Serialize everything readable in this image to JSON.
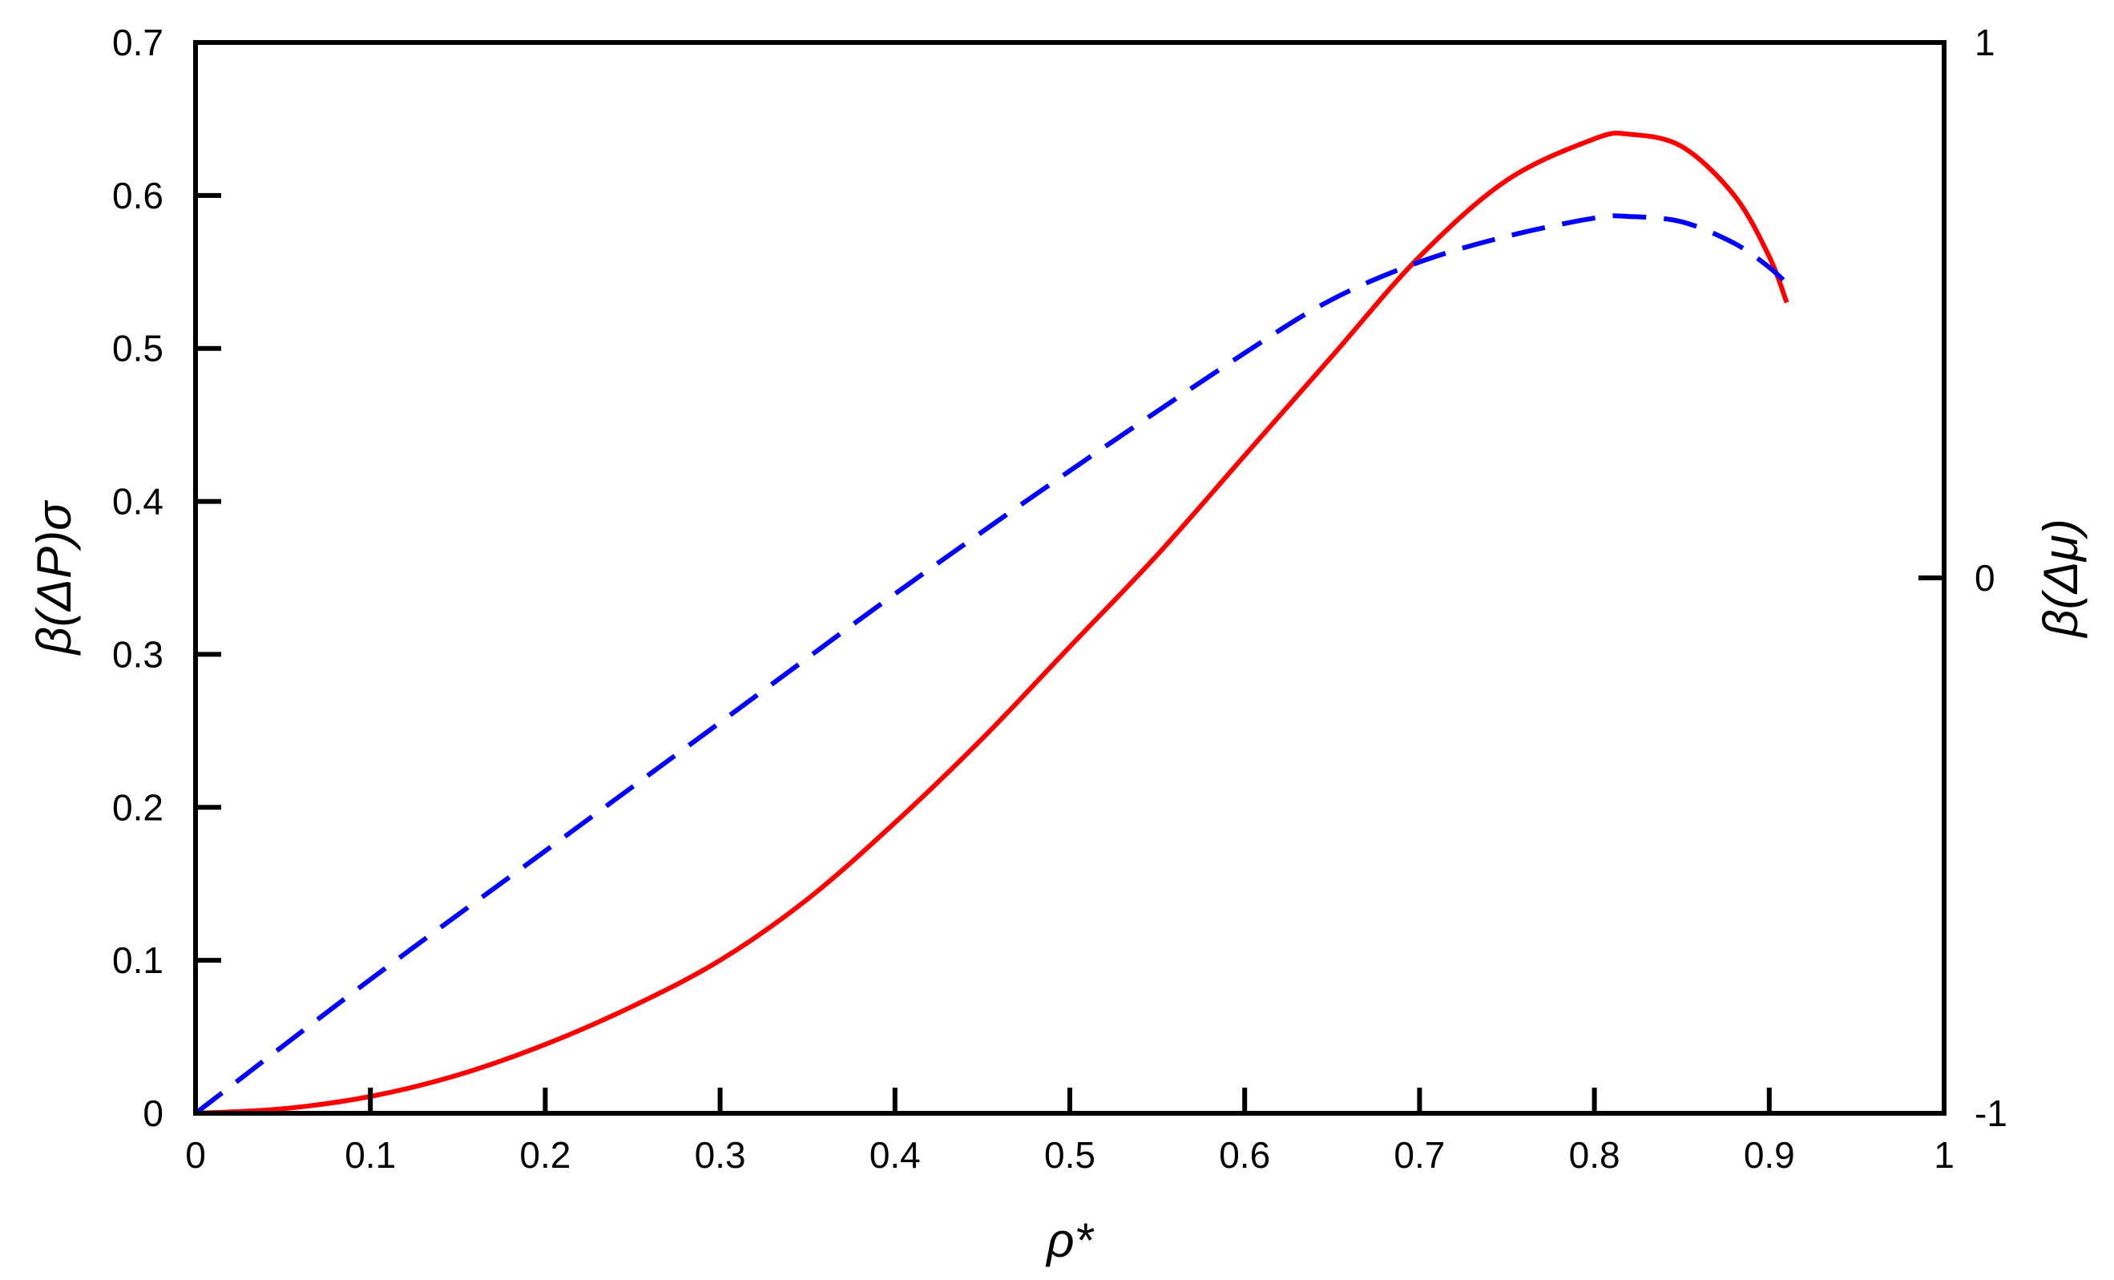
{
  "chart_data": {
    "type": "line",
    "xlabel": "ρ*",
    "ylabel": "β(ΔP)σ",
    "y2label": "β(Δμ)",
    "xlim": [
      0,
      1
    ],
    "ylim": [
      0,
      0.7
    ],
    "y2lim": [
      -1,
      1
    ],
    "x_ticks": [
      "0",
      "0.1",
      "0.2",
      "0.3",
      "0.4",
      "0.5",
      "0.6",
      "0.7",
      "0.8",
      "0.9",
      "1"
    ],
    "y_ticks": [
      "0",
      "0.1",
      "0.2",
      "0.3",
      "0.4",
      "0.5",
      "0.6",
      "0.7"
    ],
    "y2_ticks": [
      "-1",
      "0",
      "1"
    ],
    "grid": false,
    "series": [
      {
        "axis": "left",
        "color": "#ff0000",
        "style": "solid",
        "x": [
          0,
          0.05,
          0.1,
          0.15,
          0.2,
          0.25,
          0.3,
          0.35,
          0.4,
          0.45,
          0.5,
          0.55,
          0.6,
          0.65,
          0.7,
          0.75,
          0.8,
          0.82,
          0.85,
          0.88,
          0.9,
          0.91
        ],
        "y": [
          0,
          0.003,
          0.011,
          0.025,
          0.045,
          0.07,
          0.1,
          0.14,
          0.19,
          0.245,
          0.305,
          0.365,
          0.43,
          0.495,
          0.56,
          0.61,
          0.637,
          0.64,
          0.632,
          0.6,
          0.56,
          0.53
        ]
      },
      {
        "axis": "right",
        "color": "#0000ff",
        "style": "dashed",
        "x": [
          0,
          0.1,
          0.2,
          0.3,
          0.4,
          0.5,
          0.6,
          0.65,
          0.7,
          0.75,
          0.8,
          0.82,
          0.85,
          0.88,
          0.9,
          0.91
        ],
        "y": [
          -1,
          -0.75,
          -0.51,
          -0.27,
          -0.03,
          0.2,
          0.42,
          0.52,
          0.59,
          0.638,
          0.672,
          0.675,
          0.665,
          0.625,
          0.58,
          0.55
        ]
      }
    ]
  }
}
